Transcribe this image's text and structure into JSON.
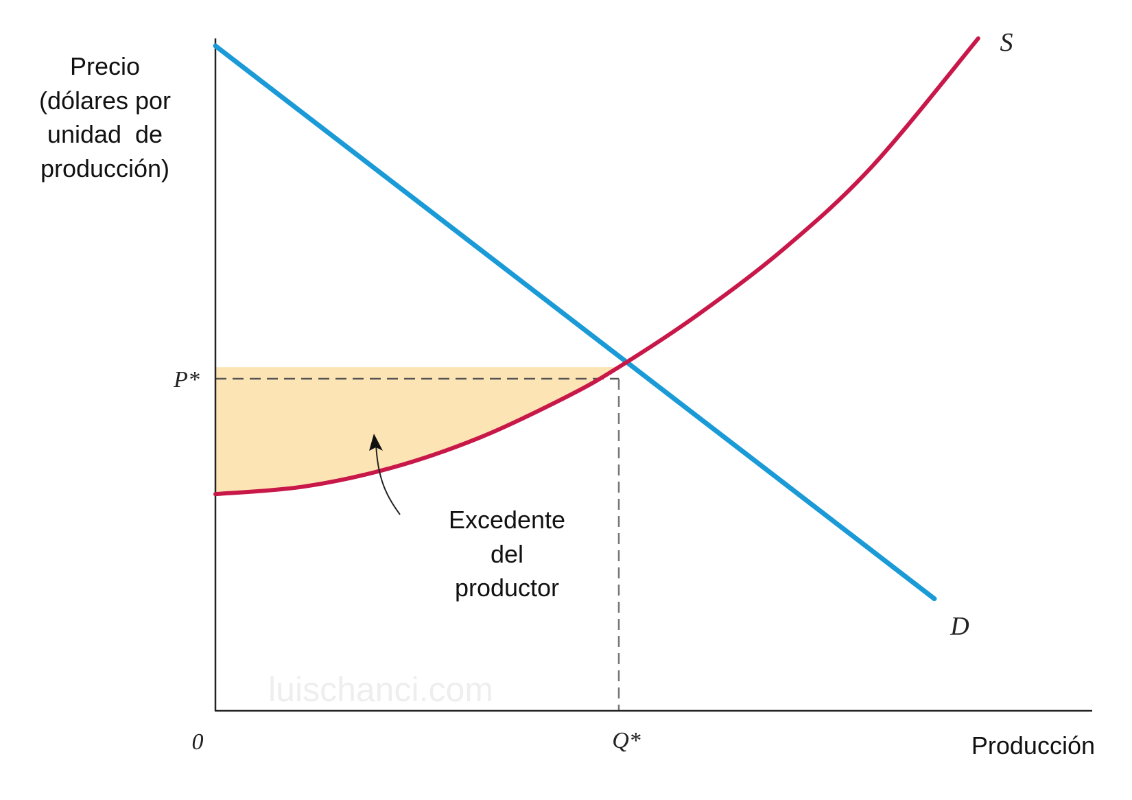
{
  "chart_data": {
    "type": "line",
    "ylabel_lines": [
      "Precio",
      "(dólares por",
      "unidad  de",
      "producción)"
    ],
    "xlabel": "Producción",
    "origin_label": "0",
    "equilibrium": {
      "p_label": "P*",
      "q_label": "Q*",
      "q": 4.6,
      "p": 4.6
    },
    "xlim": [
      0,
      10
    ],
    "ylim": [
      0,
      9
    ],
    "series": [
      {
        "name": "D",
        "color": "#1a9ad6",
        "x": [
          0,
          8.2
        ],
        "y": [
          8.9,
          1.5
        ]
      },
      {
        "name": "S",
        "color": "#c8184a",
        "x": [
          0,
          1,
          2,
          3,
          4,
          4.6,
          5.5,
          6.5,
          7.5,
          8.7
        ],
        "y": [
          2.9,
          3.0,
          3.25,
          3.65,
          4.2,
          4.6,
          5.3,
          6.2,
          7.3,
          9.0
        ]
      }
    ],
    "shaded_region": {
      "label_lines": [
        "Excedente",
        "del",
        "productor"
      ],
      "color": "#fde4b4"
    },
    "watermark": "luischanci.com"
  }
}
